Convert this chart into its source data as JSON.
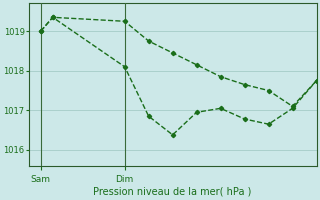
{
  "background_color": "#cce8e8",
  "grid_color": "#aad0cc",
  "line_color": "#1a6e1a",
  "title": "Pression niveau de la mer( hPa )",
  "ylim": [
    1015.6,
    1019.7
  ],
  "yticks": [
    1016,
    1017,
    1018,
    1019
  ],
  "xlim": [
    0,
    48
  ],
  "sam_x": 2,
  "dim_x": 16,
  "s1_x": [
    2,
    4,
    16,
    20,
    24,
    28,
    32,
    36,
    40,
    44,
    48
  ],
  "s1_y": [
    1019.0,
    1019.35,
    1019.25,
    1018.75,
    1018.45,
    1018.15,
    1017.85,
    1017.65,
    1017.5,
    1017.1,
    1017.75
  ],
  "s2_x": [
    2,
    4,
    16,
    20,
    24,
    28,
    32,
    36,
    40,
    44,
    48
  ],
  "s2_y": [
    1019.0,
    1019.35,
    1018.1,
    1016.85,
    1016.38,
    1016.95,
    1017.05,
    1016.78,
    1016.65,
    1017.05,
    1017.75
  ]
}
